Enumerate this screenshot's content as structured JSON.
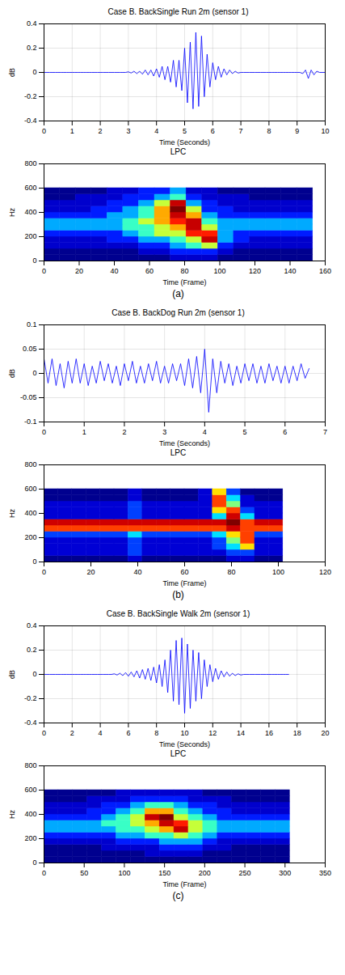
{
  "chart_data": [
    {
      "type": "line",
      "title": "Case B. BackSingle Run 2m (sensor 1)",
      "xlabel": "Time (Seconds)",
      "ylabel": "dB",
      "color": "#0000ff",
      "grid": true,
      "xlim": [
        0,
        10
      ],
      "xticks": [
        0,
        1,
        2,
        3,
        4,
        5,
        6,
        7,
        8,
        9,
        10
      ],
      "ylim": [
        -0.4,
        0.4
      ],
      "yticks": [
        -0.4,
        -0.2,
        0,
        0.2,
        0.4
      ],
      "x": [
        0,
        0.1,
        0.2,
        0.3,
        0.4,
        0.5,
        0.6,
        0.7,
        0.8,
        0.9,
        1,
        1.1,
        1.2,
        1.3,
        1.4,
        1.5,
        1.6,
        1.7,
        1.8,
        1.9,
        2,
        2.1,
        2.2,
        2.3,
        2.4,
        2.5,
        2.6,
        2.7,
        2.8,
        2.9,
        3,
        3.1,
        3.2,
        3.3,
        3.4,
        3.5,
        3.6,
        3.7,
        3.8,
        3.9,
        4,
        4.1,
        4.2,
        4.3,
        4.4,
        4.5,
        4.6,
        4.7,
        4.8,
        4.9,
        5,
        5.1,
        5.2,
        5.3,
        5.4,
        5.5,
        5.6,
        5.7,
        5.8,
        5.9,
        6,
        6.1,
        6.2,
        6.3,
        6.4,
        6.5,
        6.6,
        6.7,
        6.8,
        6.9,
        7,
        7.1,
        7.2,
        7.3,
        7.4,
        7.5,
        7.6,
        7.7,
        7.8,
        7.9,
        8,
        8.1,
        8.2,
        8.3,
        8.4,
        8.5,
        8.6,
        8.7,
        8.8,
        8.9,
        9,
        9.1,
        9.2,
        9.3,
        9.4,
        9.5,
        9.6,
        9.7,
        9.8,
        9.9,
        10
      ],
      "values": [
        0,
        0,
        0,
        0,
        0,
        0,
        0,
        0,
        0,
        0,
        0,
        0,
        0,
        0,
        0,
        0,
        0,
        0,
        0,
        0,
        0,
        0,
        0,
        0,
        0,
        0,
        0,
        0,
        0,
        0,
        0.005,
        -0.005,
        0.01,
        -0.01,
        0.01,
        -0.015,
        0.02,
        -0.02,
        0.02,
        -0.03,
        0.03,
        -0.04,
        0.05,
        -0.06,
        0.05,
        -0.08,
        0.1,
        -0.12,
        0.1,
        -0.15,
        0.2,
        -0.25,
        0.25,
        -0.3,
        0.33,
        -0.28,
        0.3,
        -0.2,
        0.15,
        -0.12,
        0.08,
        -0.06,
        0.05,
        -0.04,
        0.03,
        -0.02,
        0.02,
        -0.01,
        0.01,
        -0.005,
        0,
        0,
        0,
        0,
        0,
        0,
        0,
        0,
        0,
        0,
        0,
        0,
        0,
        0,
        0,
        0,
        0,
        0,
        0,
        0,
        0,
        0,
        -0.01,
        0.02,
        -0.05,
        0.02,
        -0.02,
        0.01,
        0,
        0,
        0
      ]
    },
    {
      "type": "heatmap",
      "title": "LPC",
      "xlabel": "Time (Frame)",
      "ylabel": "Hz",
      "caption": "(a)",
      "xlim": [
        0,
        160
      ],
      "xticks": [
        0,
        20,
        40,
        60,
        80,
        100,
        120,
        140,
        160
      ],
      "ylim": [
        0,
        800
      ],
      "yticks": [
        0,
        200,
        400,
        600,
        800
      ],
      "frames": [
        0,
        9,
        18,
        27,
        36,
        45,
        54,
        63,
        72,
        81,
        90,
        99,
        108,
        117,
        126,
        135,
        144,
        153
      ],
      "freqs": [
        0,
        50,
        100,
        150,
        200,
        250,
        300,
        350,
        400,
        450,
        500,
        550,
        600
      ],
      "cells": [
        [
          1,
          1,
          1,
          1,
          1,
          1,
          1,
          1,
          2,
          2,
          2,
          1,
          1,
          1,
          1,
          1,
          1
        ],
        [
          1,
          1,
          1,
          1,
          1,
          1,
          2,
          2,
          3,
          3,
          3,
          2,
          1,
          1,
          1,
          1,
          1
        ],
        [
          2,
          2,
          2,
          2,
          2,
          2,
          3,
          3,
          4,
          5,
          6,
          3,
          2,
          2,
          2,
          2,
          2
        ],
        [
          2,
          2,
          2,
          2,
          3,
          3,
          4,
          4,
          5,
          6,
          9,
          4,
          3,
          2,
          2,
          2,
          2
        ],
        [
          3,
          3,
          3,
          3,
          3,
          4,
          5,
          6,
          6,
          8,
          8,
          4,
          3,
          3,
          3,
          3,
          3
        ],
        [
          4,
          4,
          4,
          4,
          4,
          5,
          5,
          6,
          7,
          9,
          6,
          4,
          4,
          4,
          4,
          4,
          4
        ],
        [
          4,
          4,
          4,
          4,
          4,
          5,
          6,
          7,
          8,
          9,
          5,
          4,
          4,
          4,
          4,
          4,
          4
        ],
        [
          3,
          3,
          3,
          3,
          4,
          4,
          5,
          7,
          9,
          7,
          4,
          3,
          3,
          3,
          3,
          3,
          3
        ],
        [
          2,
          2,
          2,
          3,
          3,
          4,
          5,
          7,
          10,
          6,
          3,
          3,
          2,
          2,
          2,
          2,
          2
        ],
        [
          2,
          2,
          2,
          2,
          3,
          3,
          4,
          6,
          9,
          4,
          3,
          2,
          2,
          2,
          2,
          2,
          2
        ],
        [
          1,
          1,
          2,
          2,
          2,
          3,
          3,
          4,
          5,
          3,
          2,
          2,
          2,
          1,
          1,
          1,
          1
        ],
        [
          1,
          1,
          1,
          1,
          2,
          2,
          3,
          3,
          4,
          2,
          2,
          1,
          1,
          1,
          1,
          1,
          1
        ]
      ]
    },
    {
      "type": "line",
      "title": "Case B. BackDog Run 2m (sensor 1)",
      "xlabel": "Time (Seconds)",
      "ylabel": "dB",
      "color": "#0000ff",
      "grid": true,
      "xlim": [
        0,
        7
      ],
      "xticks": [
        0,
        1,
        2,
        3,
        4,
        5,
        6,
        7
      ],
      "ylim": [
        -0.1,
        0.1
      ],
      "yticks": [
        -0.1,
        -0.05,
        0,
        0.05,
        0.1
      ],
      "x": [
        0,
        0.1,
        0.2,
        0.3,
        0.4,
        0.5,
        0.6,
        0.7,
        0.8,
        0.9,
        1,
        1.1,
        1.2,
        1.3,
        1.4,
        1.5,
        1.6,
        1.7,
        1.8,
        1.9,
        2,
        2.1,
        2.2,
        2.3,
        2.4,
        2.5,
        2.6,
        2.7,
        2.8,
        2.9,
        3,
        3.1,
        3.2,
        3.3,
        3.4,
        3.5,
        3.6,
        3.7,
        3.8,
        3.9,
        4,
        4.1,
        4.2,
        4.3,
        4.4,
        4.5,
        4.6,
        4.7,
        4.8,
        4.9,
        5,
        5.1,
        5.2,
        5.3,
        5.4,
        5.5,
        5.6,
        5.7,
        5.8,
        5.9,
        6,
        6.1,
        6.2,
        6.3,
        6.4,
        6.5,
        6.6
      ],
      "values": [
        0.03,
        -0.02,
        0.03,
        -0.025,
        0.02,
        -0.03,
        0.025,
        -0.02,
        0.03,
        -0.02,
        0.02,
        -0.025,
        0.015,
        -0.02,
        0.025,
        -0.015,
        0.02,
        -0.02,
        0.015,
        -0.025,
        0.02,
        -0.015,
        0.025,
        -0.02,
        0.015,
        -0.02,
        0.02,
        -0.015,
        0.025,
        -0.02,
        0.015,
        -0.02,
        0.02,
        -0.015,
        0.02,
        -0.025,
        0.03,
        -0.03,
        0.035,
        -0.04,
        0.05,
        -0.08,
        0.03,
        -0.04,
        0.025,
        -0.02,
        0.02,
        -0.025,
        0.015,
        -0.02,
        0.02,
        -0.015,
        0.02,
        -0.02,
        0.015,
        -0.02,
        0.02,
        -0.015,
        0.015,
        -0.02,
        0.015,
        -0.02,
        0.015,
        -0.015,
        0.02,
        -0.01,
        0.01
      ]
    },
    {
      "type": "heatmap",
      "title": "LPC",
      "xlabel": "Time (Frame)",
      "ylabel": "Hz",
      "caption": "(b)",
      "xlim": [
        0,
        120
      ],
      "xticks": [
        0,
        20,
        40,
        60,
        80,
        100,
        120
      ],
      "ylim": [
        0,
        800
      ],
      "yticks": [
        0,
        200,
        400,
        600,
        800
      ],
      "frames": [
        0,
        6,
        12,
        18,
        24,
        30,
        36,
        42,
        48,
        54,
        60,
        66,
        72,
        78,
        84,
        90,
        96,
        102
      ],
      "freqs": [
        0,
        50,
        100,
        150,
        200,
        250,
        300,
        350,
        400,
        450,
        500,
        550,
        600
      ],
      "cells": [
        [
          2,
          2,
          2,
          2,
          2,
          2,
          3,
          2,
          2,
          2,
          2,
          2,
          2,
          3,
          3,
          2,
          2
        ],
        [
          3,
          3,
          3,
          3,
          3,
          3,
          4,
          3,
          3,
          3,
          3,
          3,
          3,
          4,
          4,
          3,
          3
        ],
        [
          3,
          3,
          3,
          3,
          3,
          3,
          4,
          3,
          3,
          3,
          3,
          3,
          4,
          5,
          7,
          3,
          3
        ],
        [
          3,
          3,
          3,
          3,
          3,
          3,
          4,
          3,
          3,
          3,
          3,
          3,
          4,
          6,
          8,
          3,
          3
        ],
        [
          4,
          4,
          4,
          4,
          4,
          4,
          5,
          4,
          4,
          4,
          4,
          4,
          5,
          7,
          8,
          4,
          4
        ],
        [
          8,
          8,
          8,
          8,
          8,
          8,
          8,
          8,
          8,
          8,
          8,
          8,
          8,
          9,
          8,
          8,
          8
        ],
        [
          9,
          9,
          9,
          9,
          9,
          9,
          9,
          9,
          9,
          9,
          9,
          9,
          9,
          10,
          8,
          9,
          9
        ],
        [
          3,
          3,
          3,
          3,
          3,
          3,
          4,
          3,
          3,
          3,
          3,
          3,
          5,
          9,
          5,
          3,
          3
        ],
        [
          3,
          3,
          3,
          3,
          3,
          3,
          4,
          3,
          3,
          3,
          3,
          3,
          7,
          8,
          4,
          3,
          3
        ],
        [
          3,
          3,
          3,
          3,
          3,
          3,
          4,
          3,
          3,
          3,
          3,
          3,
          8,
          6,
          3,
          3,
          3
        ],
        [
          2,
          2,
          2,
          2,
          2,
          2,
          3,
          2,
          2,
          2,
          2,
          3,
          8,
          5,
          3,
          2,
          2
        ],
        [
          2,
          2,
          2,
          2,
          2,
          2,
          3,
          2,
          2,
          2,
          2,
          3,
          7,
          4,
          2,
          2,
          2
        ]
      ]
    },
    {
      "type": "line",
      "title": "Case B. BackSingle Walk 2m (sensor 1)",
      "xlabel": "Time (Seconds)",
      "ylabel": "dB",
      "color": "#0000ff",
      "grid": true,
      "xlim": [
        0,
        20
      ],
      "xticks": [
        0,
        2,
        4,
        6,
        8,
        10,
        12,
        14,
        16,
        18,
        20
      ],
      "ylim": [
        -0.4,
        0.4
      ],
      "yticks": [
        -0.4,
        -0.2,
        0,
        0.2,
        0.4
      ],
      "x": [
        0,
        0.2,
        0.4,
        0.6,
        0.8,
        1,
        1.2,
        1.4,
        1.6,
        1.8,
        2,
        2.2,
        2.4,
        2.6,
        2.8,
        3,
        3.2,
        3.4,
        3.6,
        3.8,
        4,
        4.2,
        4.4,
        4.6,
        4.8,
        5,
        5.2,
        5.4,
        5.6,
        5.8,
        6,
        6.2,
        6.4,
        6.6,
        6.8,
        7,
        7.2,
        7.4,
        7.6,
        7.8,
        8,
        8.2,
        8.4,
        8.6,
        8.8,
        9,
        9.2,
        9.4,
        9.6,
        9.8,
        10,
        10.2,
        10.4,
        10.6,
        10.8,
        11,
        11.2,
        11.4,
        11.6,
        11.8,
        12,
        12.2,
        12.4,
        12.6,
        12.8,
        13,
        13.2,
        13.4,
        13.6,
        13.8,
        14,
        14.2,
        14.4,
        14.6,
        14.8,
        15,
        15.2,
        15.4,
        15.6,
        15.8,
        16,
        16.2,
        16.4,
        16.6,
        16.8,
        17,
        17.2,
        17.4
      ],
      "values": [
        0,
        0,
        0,
        0,
        0,
        0,
        0,
        0,
        0,
        0,
        0,
        0,
        0,
        0,
        0,
        0,
        0,
        0,
        0,
        0,
        0,
        0,
        0,
        0,
        0,
        0.005,
        -0.005,
        0.01,
        -0.01,
        0.015,
        -0.015,
        0.02,
        -0.02,
        0.03,
        -0.03,
        0.04,
        -0.04,
        0.05,
        -0.05,
        0.06,
        -0.07,
        0.08,
        -0.1,
        0.12,
        -0.15,
        0.2,
        -0.22,
        0.28,
        -0.25,
        0.3,
        -0.32,
        0.25,
        -0.28,
        0.2,
        -0.22,
        0.18,
        -0.2,
        0.12,
        -0.1,
        0.08,
        -0.06,
        0.05,
        -0.04,
        0.03,
        -0.02,
        0.02,
        -0.015,
        0.01,
        -0.01,
        0.005,
        -0.005,
        0,
        0,
        0,
        0,
        0,
        0,
        0,
        0,
        0,
        0,
        0,
        0,
        0,
        0,
        0,
        0,
        0
      ]
    },
    {
      "type": "heatmap",
      "title": "LPC",
      "xlabel": "Time (Frame)",
      "ylabel": "Hz",
      "caption": "(c)",
      "xlim": [
        0,
        350
      ],
      "xticks": [
        0,
        50,
        100,
        150,
        200,
        250,
        300,
        350
      ],
      "ylim": [
        0,
        800
      ],
      "yticks": [
        0,
        200,
        400,
        600,
        800
      ],
      "frames": [
        0,
        18,
        36,
        54,
        72,
        90,
        108,
        126,
        144,
        162,
        180,
        198,
        216,
        234,
        252,
        270,
        288,
        306
      ],
      "freqs": [
        0,
        50,
        100,
        150,
        200,
        250,
        300,
        350,
        400,
        450,
        500,
        550,
        600
      ],
      "cells": [
        [
          1,
          1,
          1,
          1,
          1,
          1,
          1,
          1,
          1,
          1,
          1,
          1,
          1,
          1,
          1,
          1,
          1
        ],
        [
          1,
          1,
          1,
          1,
          1,
          1,
          1,
          2,
          2,
          2,
          2,
          1,
          1,
          1,
          1,
          1,
          1
        ],
        [
          1,
          1,
          1,
          1,
          2,
          2,
          2,
          2,
          3,
          3,
          3,
          2,
          2,
          1,
          1,
          1,
          1
        ],
        [
          2,
          2,
          2,
          2,
          2,
          3,
          3,
          3,
          4,
          4,
          4,
          3,
          2,
          2,
          2,
          2,
          2
        ],
        [
          3,
          3,
          3,
          3,
          3,
          4,
          4,
          5,
          5,
          6,
          5,
          4,
          3,
          3,
          3,
          3,
          3
        ],
        [
          4,
          4,
          4,
          4,
          4,
          5,
          5,
          6,
          7,
          9,
          6,
          5,
          4,
          4,
          4,
          4,
          4
        ],
        [
          4,
          4,
          4,
          4,
          5,
          5,
          6,
          7,
          9,
          8,
          6,
          5,
          4,
          4,
          4,
          4,
          4
        ],
        [
          3,
          3,
          3,
          3,
          4,
          5,
          6,
          9,
          10,
          6,
          5,
          4,
          3,
          3,
          3,
          3,
          3
        ],
        [
          2,
          2,
          2,
          3,
          3,
          4,
          5,
          7,
          7,
          5,
          4,
          3,
          3,
          2,
          2,
          2,
          2
        ],
        [
          2,
          2,
          2,
          2,
          3,
          3,
          4,
          5,
          5,
          4,
          3,
          3,
          2,
          2,
          2,
          2,
          2
        ],
        [
          1,
          1,
          1,
          2,
          2,
          2,
          3,
          3,
          3,
          3,
          2,
          2,
          2,
          1,
          1,
          1,
          1
        ],
        [
          1,
          1,
          1,
          1,
          1,
          2,
          2,
          2,
          2,
          2,
          2,
          1,
          1,
          1,
          1,
          1,
          1
        ]
      ]
    }
  ]
}
